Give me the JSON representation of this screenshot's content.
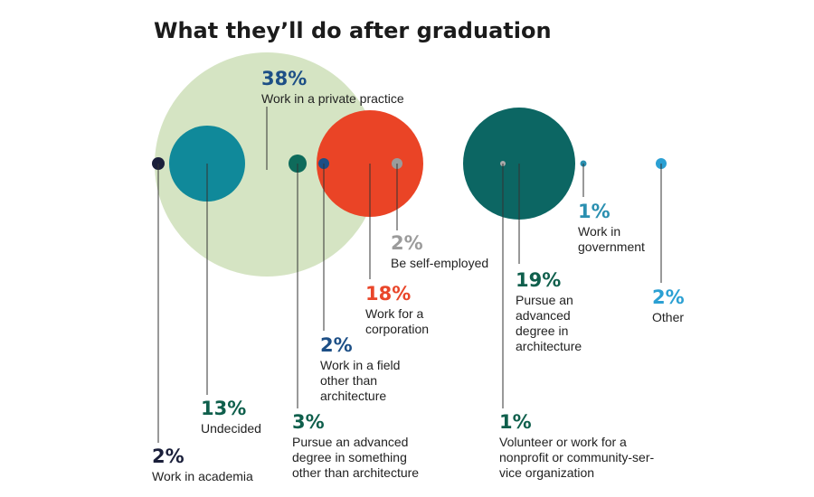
{
  "chart_data": {
    "type": "bubble",
    "title": "What they’ll do after graduation",
    "unit": "%",
    "items": [
      {
        "value": 38,
        "pct": "38%",
        "label": [
          "Work in a private practice"
        ],
        "color": "#d5e4c3",
        "textColor": "#1d4f86",
        "kind": "large"
      },
      {
        "value": 2,
        "pct": "2%",
        "label": [
          "Work in academia"
        ],
        "color": "#1a1f3a",
        "textColor": "#1a1f3a",
        "kind": "dot"
      },
      {
        "value": 13,
        "pct": "13%",
        "label": [
          "Undecided"
        ],
        "color": "#10899a",
        "textColor": "#0f5f4c",
        "kind": "bubble"
      },
      {
        "value": 3,
        "pct": "3%",
        "label": [
          "Pursue an advanced",
          "degree in something",
          "other than architecture"
        ],
        "color": "#0e6b5b",
        "textColor": "#0f5f4c",
        "kind": "dot"
      },
      {
        "value": 2,
        "pct": "2%",
        "label": [
          "Work in a field",
          "other than",
          "architecture"
        ],
        "color": "#1d4f86",
        "textColor": "#1d4f86",
        "kind": "dot"
      },
      {
        "value": 18,
        "pct": "18%",
        "label": [
          "Work for a",
          "corporation"
        ],
        "color": "#ea4426",
        "textColor": "#e9462a",
        "kind": "bubble"
      },
      {
        "value": 2,
        "pct": "2%",
        "label": [
          "Be self-employed"
        ],
        "color": "#9b9b9b",
        "textColor": "#9b9b9b",
        "kind": "dot"
      },
      {
        "value": 19,
        "pct": "19%",
        "label": [
          "Pursue an",
          "advanced",
          "degree in",
          "architecture"
        ],
        "color": "#0c6663",
        "textColor": "#0f5f4c",
        "kind": "bubble"
      },
      {
        "value": 1,
        "pct": "1%",
        "label": [
          "Volunteer or work for a",
          "nonprofit or community-ser-",
          "vice organization"
        ],
        "color": "#aaaaaa",
        "textColor": "#0f5f4c",
        "kind": "dot"
      },
      {
        "value": 1,
        "pct": "1%",
        "label": [
          "Work in",
          "government"
        ],
        "color": "#2a8fb0",
        "textColor": "#2a8fb0",
        "kind": "dot"
      },
      {
        "value": 2,
        "pct": "2%",
        "label": [
          "Other"
        ],
        "color": "#2ba0d3",
        "textColor": "#2ba0d3",
        "kind": "dot"
      }
    ]
  }
}
